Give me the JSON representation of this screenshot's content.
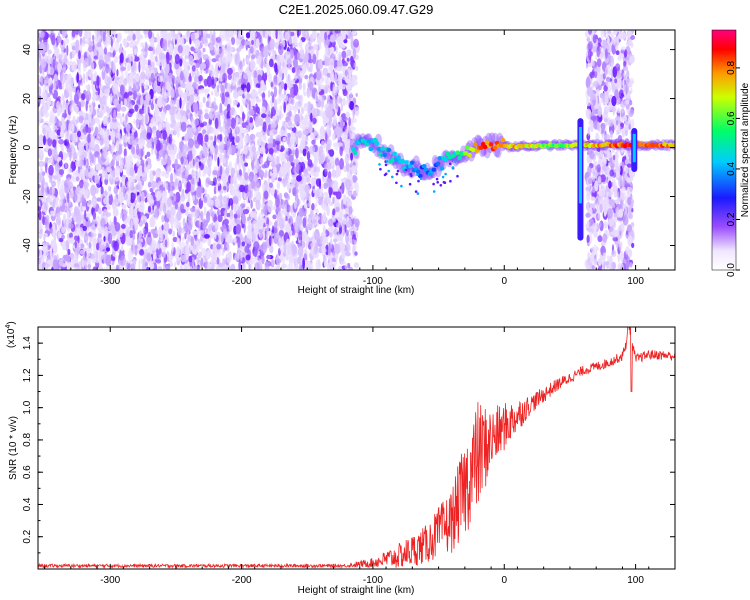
{
  "title": "C2E1.2025.060.09.47.G29",
  "colors": {
    "snr_line": "#ee2222",
    "background": "#ffffff"
  },
  "chart_data": [
    {
      "type": "heatmap",
      "name": "spectrogram",
      "title": "C2E1.2025.060.09.47.G29",
      "xlabel": "Height of straight line (km)",
      "ylabel": "Frequency (Hz)",
      "xlim": [
        -355,
        130
      ],
      "ylim": [
        -50,
        48
      ],
      "xticks": [
        -300,
        -200,
        -100,
        0,
        100
      ],
      "yticks": [
        -40,
        -20,
        0,
        20,
        40
      ],
      "colorbar": {
        "label": "Normalized spectral amplitude",
        "range": [
          0,
          0.95
        ],
        "ticks": [
          "0.0",
          "0.2",
          "0.4",
          "0.6",
          "0.8"
        ]
      },
      "regions": [
        {
          "kind": "noise",
          "x_range": [
            -355,
            -112
          ],
          "amplitude": 0.15
        },
        {
          "kind": "noise",
          "x_range": [
            63,
            98
          ],
          "amplitude": 0.15
        }
      ],
      "signal_track": {
        "x": [
          -115,
          -100,
          -90,
          -80,
          -70,
          -60,
          -50,
          -40,
          -30,
          -20,
          -10,
          0,
          20,
          40,
          58,
          100,
          130
        ],
        "freq_hz": [
          0,
          2,
          -2,
          -6,
          -8,
          -10,
          -7,
          -4,
          -2,
          0,
          1,
          0.5,
          0.5,
          1,
          1,
          1,
          1
        ],
        "amplitude": [
          0.45,
          0.5,
          0.45,
          0.45,
          0.4,
          0.35,
          0.4,
          0.5,
          0.6,
          0.85,
          0.85,
          0.8,
          0.75,
          0.6,
          0.75,
          0.9,
          0.8
        ]
      },
      "vertical_features": [
        {
          "x": 58,
          "freq_range": [
            -38,
            12
          ]
        },
        {
          "x": 99,
          "freq_range": [
            -10,
            8
          ]
        }
      ]
    },
    {
      "type": "line",
      "name": "snr",
      "xlabel": "Height of straight line (km)",
      "ylabel": "SNR (10 * v/v)",
      "exponent_label": "(x10",
      "exponent_power": "4",
      "xlim": [
        -355,
        130
      ],
      "ylim": [
        0,
        1.5
      ],
      "xticks": [
        -300,
        -200,
        -100,
        0,
        100
      ],
      "yticks": [
        0.2,
        0.4,
        0.6,
        0.8,
        1.0,
        1.2,
        1.4
      ],
      "series": [
        {
          "name": "SNR",
          "x": [
            -355,
            -200,
            -120,
            -100,
            -80,
            -60,
            -40,
            -30,
            -20,
            -10,
            0,
            20,
            40,
            60,
            80,
            90,
            95,
            100,
            110,
            130
          ],
          "y": [
            0.02,
            0.02,
            0.02,
            0.04,
            0.08,
            0.15,
            0.3,
            0.5,
            0.7,
            0.8,
            0.88,
            1.02,
            1.14,
            1.23,
            1.28,
            1.32,
            1.47,
            1.3,
            1.33,
            1.32
          ],
          "noise_amplitude": [
            0.01,
            0.01,
            0.01,
            0.03,
            0.08,
            0.12,
            0.2,
            0.3,
            0.35,
            0.2,
            0.15,
            0.06,
            0.04,
            0.03,
            0.03,
            0.03,
            0.05,
            0.03,
            0.03,
            0.03
          ]
        }
      ]
    }
  ]
}
